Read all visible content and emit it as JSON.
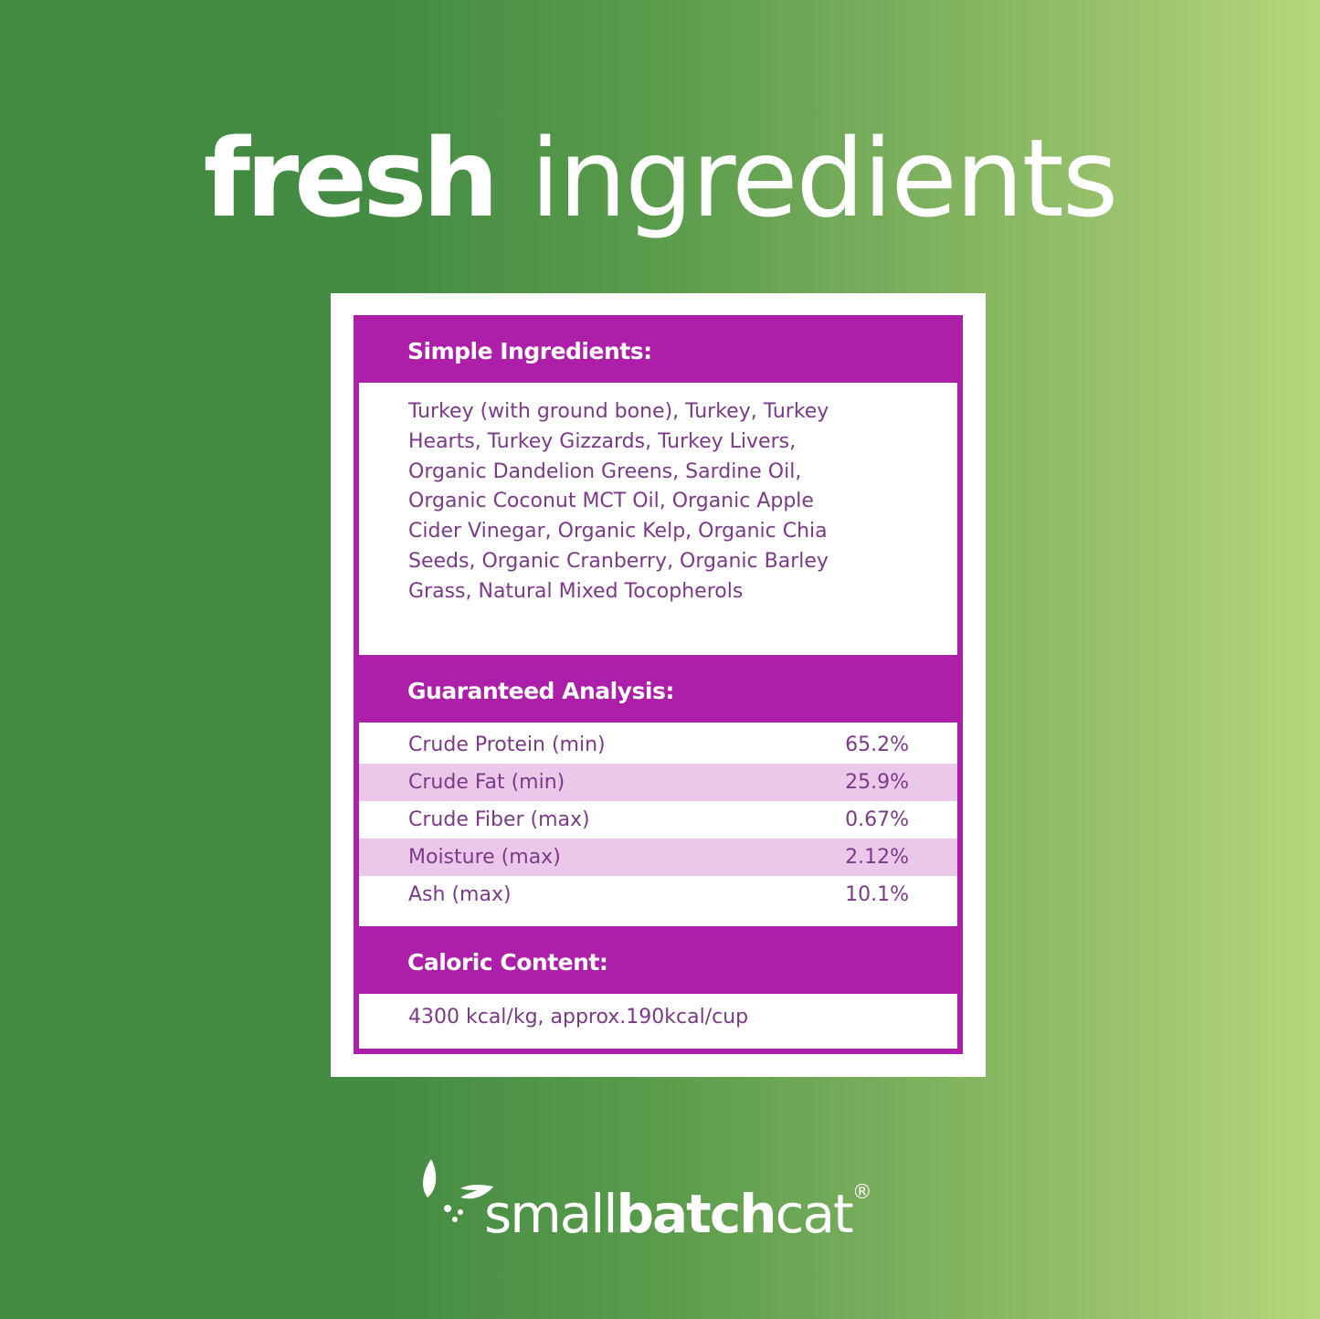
{
  "headline": {
    "bold": "fresh",
    "regular": "ingredients"
  },
  "label": {
    "ingredients": {
      "heading": "Simple Ingredients:",
      "lines": [
        "Turkey (with ground bone), Turkey, Turkey",
        "Hearts, Turkey Gizzards, Turkey Livers,",
        "Organic Dandelion Greens, Sardine Oil,",
        "Organic Coconut MCT Oil, Organic Apple",
        "Cider Vinegar, Organic Kelp, Organic Chia",
        "Seeds, Organic Cranberry, Organic Barley",
        "Grass, Natural Mixed Tocopherols"
      ]
    },
    "analysis": {
      "heading": "Guaranteed Analysis:",
      "rows": [
        {
          "name": "Crude Protein (min)",
          "value": "65.2%"
        },
        {
          "name": "Crude Fat (min)",
          "value": "25.9%"
        },
        {
          "name": "Crude Fiber (max)",
          "value": "0.67%"
        },
        {
          "name": "Moisture (max)",
          "value": "2.12%"
        },
        {
          "name": "Ash (max)",
          "value": "10.1%"
        }
      ]
    },
    "caloric": {
      "heading": "Caloric Content:",
      "text": "4300 kcal/kg, approx.190kcal/cup"
    }
  },
  "brand": {
    "light1": "small",
    "bold": "batch",
    "light2": "cat",
    "reg": "®",
    "icon": "leaf-icon"
  },
  "colors": {
    "purple": "#ad1fa8",
    "text": "#7b3a88",
    "row_alt": "#ebc8e9",
    "green": "#418a42",
    "light_green": "#b6d67c"
  }
}
